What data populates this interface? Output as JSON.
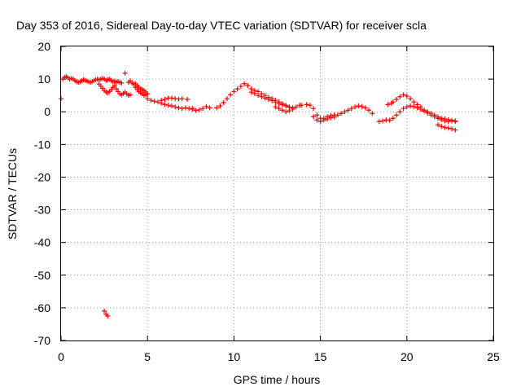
{
  "chart_data": {
    "type": "scatter",
    "title": "Day 353 of 2016, Sidereal Day-to-day VTEC variation (SDTVAR) for receiver scla",
    "xlabel": "GPS time / hours",
    "ylabel": "SDTVAR / TECUs",
    "xlim": [
      0,
      25
    ],
    "ylim": [
      -70,
      20
    ],
    "xticks": [
      0,
      5,
      10,
      15,
      20,
      25
    ],
    "yticks": [
      20,
      10,
      0,
      -10,
      -20,
      -30,
      -40,
      -50,
      -60,
      -70
    ],
    "grid": true,
    "marker": "+",
    "color": "#ff0000",
    "series": [
      {
        "name": "SDTVAR",
        "points": [
          [
            0.0,
            4
          ],
          [
            0.1,
            10
          ],
          [
            0.2,
            10.5
          ],
          [
            0.3,
            10.8
          ],
          [
            0.4,
            10.4
          ],
          [
            0.5,
            10.0
          ],
          [
            0.6,
            10.2
          ],
          [
            0.7,
            10.0
          ],
          [
            0.8,
            9.6
          ],
          [
            0.9,
            9.2
          ],
          [
            1.0,
            9.0
          ],
          [
            1.1,
            9.2
          ],
          [
            1.2,
            9.5
          ],
          [
            1.3,
            9.8
          ],
          [
            1.4,
            9.6
          ],
          [
            1.5,
            9.4
          ],
          [
            1.6,
            9.2
          ],
          [
            1.7,
            9.0
          ],
          [
            1.8,
            9.2
          ],
          [
            1.9,
            9.6
          ],
          [
            2.0,
            9.8
          ],
          [
            2.1,
            10.0
          ],
          [
            2.2,
            9.8
          ],
          [
            2.3,
            10.0
          ],
          [
            2.4,
            10.2
          ],
          [
            2.5,
            10.0
          ],
          [
            2.6,
            9.6
          ],
          [
            2.7,
            9.8
          ],
          [
            2.8,
            10.0
          ],
          [
            2.9,
            9.6
          ],
          [
            3.0,
            9.2
          ],
          [
            3.1,
            9.4
          ],
          [
            3.2,
            9.0
          ],
          [
            3.3,
            9.3
          ],
          [
            3.4,
            9.0
          ],
          [
            3.5,
            8.8
          ],
          [
            2.2,
            8.5
          ],
          [
            2.3,
            7.8
          ],
          [
            2.4,
            7.2
          ],
          [
            2.5,
            6.5
          ],
          [
            2.6,
            6.0
          ],
          [
            2.7,
            5.8
          ],
          [
            2.8,
            6.2
          ],
          [
            2.9,
            6.8
          ],
          [
            3.0,
            7.5
          ],
          [
            3.1,
            8.0
          ],
          [
            3.2,
            7.0
          ],
          [
            3.3,
            6.2
          ],
          [
            3.4,
            5.5
          ],
          [
            3.5,
            5.2
          ],
          [
            3.6,
            5.6
          ],
          [
            3.7,
            6.0
          ],
          [
            3.8,
            5.5
          ],
          [
            3.9,
            5.0
          ],
          [
            4.0,
            5.2
          ],
          [
            3.7,
            11.8
          ],
          [
            3.9,
            9.0
          ],
          [
            4.0,
            9.5
          ],
          [
            4.1,
            8.8
          ],
          [
            4.2,
            8.5
          ],
          [
            4.3,
            8.6
          ],
          [
            4.4,
            8.0
          ],
          [
            4.5,
            7.5
          ],
          [
            4.6,
            7.0
          ],
          [
            4.7,
            6.8
          ],
          [
            4.8,
            6.5
          ],
          [
            4.9,
            6.0
          ],
          [
            4.3,
            7.5
          ],
          [
            4.4,
            6.8
          ],
          [
            4.5,
            6.2
          ],
          [
            4.6,
            5.8
          ],
          [
            4.7,
            5.5
          ],
          [
            4.8,
            5.0
          ],
          [
            4.9,
            5.2
          ],
          [
            5.0,
            5.5
          ],
          [
            5.0,
            4.0
          ],
          [
            5.2,
            3.5
          ],
          [
            5.4,
            3.2
          ],
          [
            5.6,
            3.0
          ],
          [
            5.8,
            2.6
          ],
          [
            6.0,
            2.2
          ],
          [
            6.2,
            2.0
          ],
          [
            6.4,
            1.8
          ],
          [
            6.6,
            1.5
          ],
          [
            6.8,
            1.2
          ],
          [
            7.0,
            1.0
          ],
          [
            7.2,
            1.2
          ],
          [
            7.4,
            1.0
          ],
          [
            7.6,
            0.8
          ],
          [
            5.8,
            3.5
          ],
          [
            6.0,
            3.8
          ],
          [
            6.2,
            4.2
          ],
          [
            6.4,
            4.2
          ],
          [
            6.6,
            4.0
          ],
          [
            6.8,
            3.9
          ],
          [
            7.0,
            4.0
          ],
          [
            7.3,
            3.8
          ],
          [
            7.6,
            1.0
          ],
          [
            7.8,
            0.4
          ],
          [
            8.0,
            0.6
          ],
          [
            8.2,
            1.0
          ],
          [
            8.4,
            1.6
          ],
          [
            8.6,
            1.2
          ],
          [
            9.0,
            1.2
          ],
          [
            9.2,
            1.8
          ],
          [
            9.4,
            2.8
          ],
          [
            9.6,
            4.0
          ],
          [
            9.8,
            5.2
          ],
          [
            10.0,
            6.2
          ],
          [
            10.2,
            7.0
          ],
          [
            10.4,
            7.8
          ],
          [
            10.6,
            8.6
          ],
          [
            10.8,
            8.0
          ],
          [
            11.0,
            7.0
          ],
          [
            11.2,
            6.5
          ],
          [
            11.4,
            6.2
          ],
          [
            11.6,
            5.5
          ],
          [
            11.8,
            5.0
          ],
          [
            12.0,
            4.4
          ],
          [
            12.2,
            4.0
          ],
          [
            12.4,
            3.5
          ],
          [
            12.6,
            3.0
          ],
          [
            12.8,
            2.5
          ],
          [
            13.0,
            2.0
          ],
          [
            13.2,
            1.5
          ],
          [
            13.4,
            1.2
          ],
          [
            13.6,
            1.5
          ],
          [
            13.8,
            2.0
          ],
          [
            11.0,
            6.0
          ],
          [
            11.2,
            5.6
          ],
          [
            11.4,
            5.0
          ],
          [
            11.6,
            4.6
          ],
          [
            11.8,
            4.2
          ],
          [
            12.0,
            3.8
          ],
          [
            12.2,
            3.4
          ],
          [
            12.4,
            3.0
          ],
          [
            12.6,
            2.5
          ],
          [
            12.8,
            2.2
          ],
          [
            13.0,
            1.8
          ],
          [
            13.2,
            1.4
          ],
          [
            12.4,
            1.5
          ],
          [
            12.6,
            1.0
          ],
          [
            12.8,
            0.5
          ],
          [
            13.0,
            0.0
          ],
          [
            13.2,
            0.3
          ],
          [
            13.4,
            0.8
          ],
          [
            13.9,
            2.0
          ],
          [
            14.2,
            2.2
          ],
          [
            14.4,
            2.0
          ],
          [
            14.6,
            1.0
          ],
          [
            14.8,
            -1.0
          ],
          [
            15.0,
            -2.0
          ],
          [
            14.6,
            -1.5
          ],
          [
            14.8,
            -2.5
          ],
          [
            15.0,
            -3.0
          ],
          [
            15.2,
            -2.0
          ],
          [
            15.4,
            -1.5
          ],
          [
            15.6,
            -1.2
          ],
          [
            15.8,
            -1.0
          ],
          [
            15.2,
            -2.5
          ],
          [
            15.4,
            -2.2
          ],
          [
            15.6,
            -1.8
          ],
          [
            15.8,
            -1.6
          ],
          [
            16.0,
            -1.0
          ],
          [
            16.2,
            -0.5
          ],
          [
            16.4,
            0.0
          ],
          [
            16.6,
            0.5
          ],
          [
            16.8,
            1.0
          ],
          [
            17.0,
            1.5
          ],
          [
            17.2,
            1.8
          ],
          [
            17.4,
            1.6
          ],
          [
            17.6,
            1.2
          ],
          [
            17.8,
            0.5
          ],
          [
            18.0,
            -0.5
          ],
          [
            18.4,
            -3.0
          ],
          [
            18.6,
            -2.8
          ],
          [
            18.8,
            -2.5
          ],
          [
            19.0,
            -2.6
          ],
          [
            19.2,
            -2.0
          ],
          [
            18.9,
            2.2
          ],
          [
            19.1,
            2.6
          ],
          [
            19.2,
            3.0
          ],
          [
            19.4,
            3.8
          ],
          [
            19.6,
            4.6
          ],
          [
            19.8,
            5.2
          ],
          [
            20.0,
            4.8
          ],
          [
            20.2,
            4.0
          ],
          [
            20.4,
            3.0
          ],
          [
            20.6,
            2.2
          ],
          [
            20.8,
            1.5
          ],
          [
            21.0,
            0.5
          ],
          [
            21.2,
            0.0
          ],
          [
            21.4,
            -0.5
          ],
          [
            21.6,
            -1.0
          ],
          [
            21.8,
            -1.6
          ],
          [
            22.0,
            -2.0
          ],
          [
            22.2,
            -2.2
          ],
          [
            22.4,
            -2.4
          ],
          [
            22.6,
            -2.6
          ],
          [
            22.8,
            -2.8
          ],
          [
            19.4,
            -1.0
          ],
          [
            19.6,
            0.0
          ],
          [
            19.8,
            1.0
          ],
          [
            20.0,
            1.5
          ],
          [
            20.2,
            1.8
          ],
          [
            20.4,
            1.6
          ],
          [
            20.6,
            1.2
          ],
          [
            20.8,
            0.8
          ],
          [
            21.0,
            0.2
          ],
          [
            21.2,
            -0.4
          ],
          [
            21.4,
            -1.0
          ],
          [
            21.6,
            -1.5
          ],
          [
            21.8,
            -2.0
          ],
          [
            22.0,
            -2.4
          ],
          [
            22.2,
            -2.8
          ],
          [
            22.4,
            -3.0
          ],
          [
            22.6,
            -2.8
          ],
          [
            22.8,
            -3.0
          ],
          [
            21.8,
            -4.0
          ],
          [
            22.0,
            -4.5
          ],
          [
            22.2,
            -4.8
          ],
          [
            22.4,
            -5.0
          ],
          [
            22.6,
            -5.2
          ],
          [
            22.8,
            -5.6
          ],
          [
            2.5,
            -61.0
          ],
          [
            2.6,
            -62.0
          ],
          [
            2.7,
            -62.5
          ]
        ]
      }
    ]
  }
}
